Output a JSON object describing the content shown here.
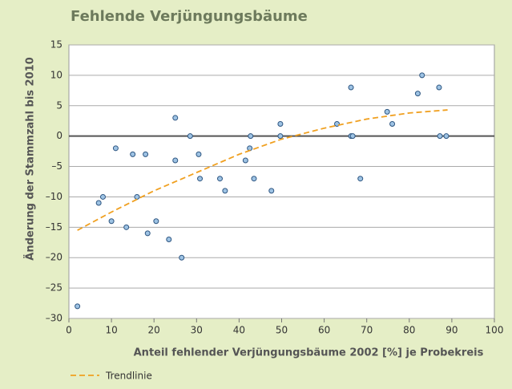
{
  "chart_data": {
    "type": "scatter",
    "title": "Fehlende Verjüngungsbäume",
    "xlabel": "Anteil fehlender Verjüngungsbäume 2002 [%] je Probekreis",
    "ylabel": "Änderung der Stammzahl bis 2010",
    "xlim": [
      0,
      100
    ],
    "xticks": [
      0,
      10,
      20,
      30,
      40,
      50,
      60,
      70,
      80,
      90,
      100
    ],
    "ylim": [
      -30,
      15
    ],
    "yticks": [
      {
        "value": -30,
        "label": "–30"
      },
      {
        "value": -25,
        "label": "–25"
      },
      {
        "value": -20,
        "label": "–20"
      },
      {
        "value": -15,
        "label": "–15"
      },
      {
        "value": -10,
        "label": "–10"
      },
      {
        "value": -5,
        "label": "–5"
      },
      0,
      5,
      10,
      15
    ],
    "grid": true,
    "zero_line": true,
    "series": [
      {
        "type": "scatter",
        "color": "#9ec3e4",
        "edge_color": "#2d5580",
        "x": [
          2,
          7,
          8,
          10,
          11,
          13.5,
          15,
          16,
          18,
          18.5,
          20.5,
          23.5,
          25,
          25,
          26.5,
          28.5,
          30.5,
          30.8,
          35.5,
          36.7,
          41.5,
          42.5,
          42.7,
          43.5,
          47.6,
          49.7,
          49.7,
          63,
          66.3,
          66.3,
          66.7,
          68.5,
          74.8,
          76,
          82,
          83,
          87,
          87.2,
          88.7
        ],
        "values": [
          -28,
          -11,
          -10,
          -14,
          -2,
          -15,
          -3,
          -10,
          -3,
          -16,
          -14,
          -17,
          3,
          -4,
          -20,
          0,
          -3,
          -7,
          -7,
          -9,
          -4,
          -2,
          0,
          -7,
          -9,
          2,
          0,
          2,
          8,
          0,
          0,
          -7,
          4,
          2,
          7,
          10,
          8,
          0,
          0
        ]
      },
      {
        "type": "line",
        "name": "Trendlinie",
        "color": "#f0a020",
        "dashed": true,
        "x": [
          2,
          10,
          20,
          30,
          40,
          50,
          60,
          70,
          80,
          89
        ],
        "values": [
          -15.5,
          -12.5,
          -9,
          -6,
          -3,
          -0.5,
          1.3,
          2.8,
          3.8,
          4.3
        ]
      }
    ]
  }
}
